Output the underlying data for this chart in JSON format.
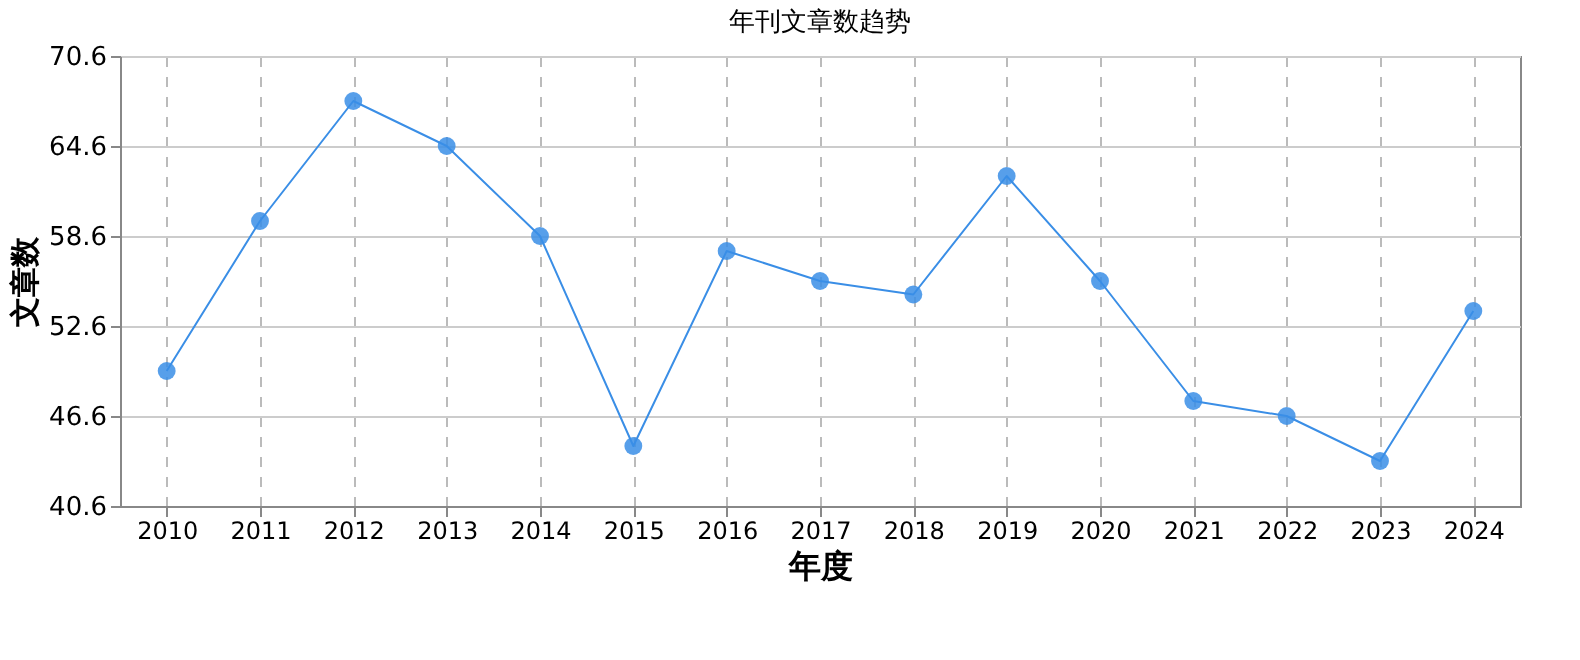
{
  "chart_data": {
    "type": "line",
    "title": "年刊文章数趋势",
    "xlabel": "年度",
    "ylabel": "文章数",
    "categories": [
      "2010",
      "2011",
      "2012",
      "2013",
      "2014",
      "2015",
      "2016",
      "2017",
      "2018",
      "2019",
      "2020",
      "2021",
      "2022",
      "2023",
      "2024"
    ],
    "series": [
      {
        "color": "#3a8ee6",
        "values": [
          49.6,
          59.6,
          67.6,
          64.6,
          58.6,
          44.6,
          57.6,
          55.6,
          54.7,
          62.6,
          55.6,
          47.6,
          46.6,
          43.6,
          53.6
        ]
      }
    ],
    "ylim": [
      40.6,
      70.6
    ],
    "yticks": [
      40.6,
      46.6,
      52.6,
      58.6,
      64.6,
      70.6
    ],
    "grid": true,
    "marker": "circle",
    "line_style": "solid"
  }
}
